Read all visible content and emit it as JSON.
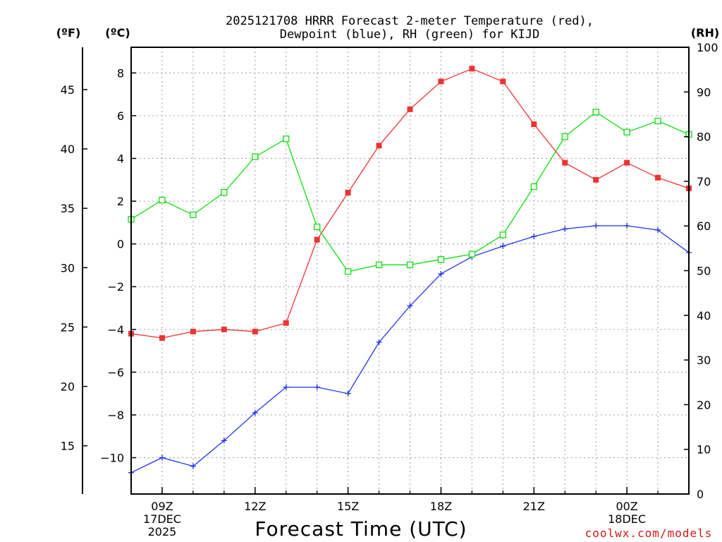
{
  "title_line1": "2025121708 HRRR Forecast 2-meter Temperature (red),",
  "title_line2": "Dewpoint (blue), RH (green) for KIJD",
  "unit_f": "(ºF)",
  "unit_c": "(ºC)",
  "unit_rh": "(RH)",
  "xlabel": "Forecast Time (UTC)",
  "credit": "coolwx.com/models",
  "colors": {
    "temperature": "#ee3333",
    "dewpoint": "#2233ee",
    "rh": "#11dd11",
    "credit": "#d01818"
  },
  "chart_data": {
    "type": "line",
    "title": "2025121708 HRRR Forecast 2-meter Temperature (red), Dewpoint (blue), RH (green) for KIJD",
    "xlabel": "Forecast Time (UTC)",
    "x_hours": [
      8,
      9,
      10,
      11,
      12,
      13,
      14,
      15,
      16,
      17,
      18,
      19,
      20,
      21,
      22,
      23,
      24,
      25,
      26
    ],
    "xlim": [
      8,
      26
    ],
    "x_ticks": [
      {
        "hour": 9,
        "lines": [
          "09Z",
          "17DEC",
          "2025"
        ]
      },
      {
        "hour": 12,
        "lines": [
          "12Z"
        ]
      },
      {
        "hour": 15,
        "lines": [
          "15Z"
        ]
      },
      {
        "hour": 18,
        "lines": [
          "18Z"
        ]
      },
      {
        "hour": 21,
        "lines": [
          "21Z"
        ]
      },
      {
        "hour": 24,
        "lines": [
          "00Z",
          "18DEC"
        ]
      }
    ],
    "left_axis_c": {
      "label": "(ºC)",
      "range": [
        -11.7,
        9.2
      ],
      "ticks": [
        -10,
        -8,
        -6,
        -4,
        -2,
        0,
        2,
        4,
        6,
        8
      ]
    },
    "left_axis_f": {
      "label": "(ºF)",
      "ticks": [
        15,
        20,
        25,
        30,
        35,
        40,
        45
      ]
    },
    "right_axis_rh": {
      "label": "(RH)",
      "range": [
        0,
        100
      ],
      "ticks": [
        0,
        10,
        20,
        30,
        40,
        50,
        60,
        70,
        80,
        90,
        100
      ]
    },
    "series": [
      {
        "name": "Temperature",
        "axis": "celsius",
        "marker": "filled-square",
        "color": "#ee3333",
        "values": [
          -4.2,
          -4.4,
          -4.1,
          -4.0,
          -4.1,
          -3.7,
          0.2,
          2.4,
          4.6,
          6.3,
          7.6,
          8.2,
          7.6,
          5.6,
          3.8,
          3.0,
          3.8,
          3.1,
          2.6
        ]
      },
      {
        "name": "Dewpoint",
        "axis": "celsius",
        "marker": "plus",
        "color": "#2233ee",
        "values": [
          -10.7,
          -10.0,
          -10.4,
          -9.2,
          -7.9,
          -6.7,
          -6.7,
          -7.0,
          -4.6,
          -2.9,
          -1.4,
          -0.6,
          -0.1,
          0.35,
          0.7,
          0.85,
          0.85,
          0.65,
          -0.4
        ]
      },
      {
        "name": "RH",
        "axis": "rh",
        "marker": "open-square",
        "color": "#11dd11",
        "values": [
          61.5,
          65.8,
          62.5,
          67.5,
          75.5,
          79.5,
          59.8,
          49.8,
          51.3,
          51.3,
          52.5,
          53.7,
          58.0,
          68.8,
          80.0,
          85.5,
          81.0,
          83.5,
          80.5
        ]
      }
    ]
  }
}
